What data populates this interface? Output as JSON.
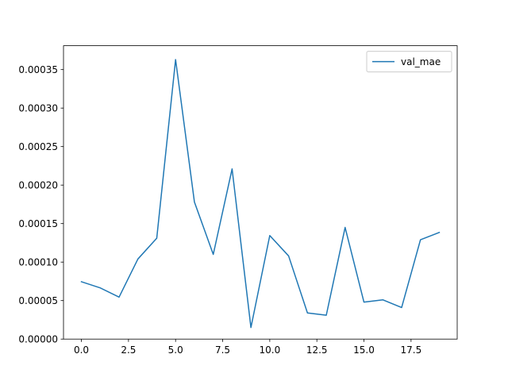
{
  "chart_data": {
    "type": "line",
    "title": "",
    "xlabel": "",
    "ylabel": "",
    "xlim": [
      -0.95,
      19.95
    ],
    "ylim": [
      0.0,
      0.000381
    ],
    "x_ticks": [
      0,
      2.5,
      5,
      7.5,
      10,
      12.5,
      15,
      17.5
    ],
    "x_tick_labels": [
      "0.0",
      "2.5",
      "5.0",
      "7.5",
      "10.0",
      "12.5",
      "15.0",
      "17.5"
    ],
    "y_ticks": [
      0,
      5e-05,
      0.0001,
      0.00015,
      0.0002,
      0.00025,
      0.0003,
      0.00035
    ],
    "y_tick_labels": [
      "0.00000",
      "0.00005",
      "0.00010",
      "0.00015",
      "0.00020",
      "0.00025",
      "0.00030",
      "0.00035"
    ],
    "grid": false,
    "legend_position": "top-right",
    "series": [
      {
        "name": "val_mae",
        "color": "#1f77b4",
        "x": [
          0,
          1,
          2,
          3,
          4,
          5,
          6,
          7,
          8,
          9,
          10,
          11,
          12,
          13,
          14,
          15,
          16,
          17,
          18,
          19
        ],
        "values": [
          7.45e-05,
          6.65e-05,
          5.45e-05,
          0.000104,
          0.000131,
          0.000363,
          0.000178,
          0.00011,
          0.000221,
          1.5e-05,
          0.0001345,
          0.000108,
          3.4e-05,
          3.1e-05,
          0.000145,
          4.8e-05,
          5.1e-05,
          4.1e-05,
          0.000129,
          0.0001385
        ]
      }
    ]
  }
}
